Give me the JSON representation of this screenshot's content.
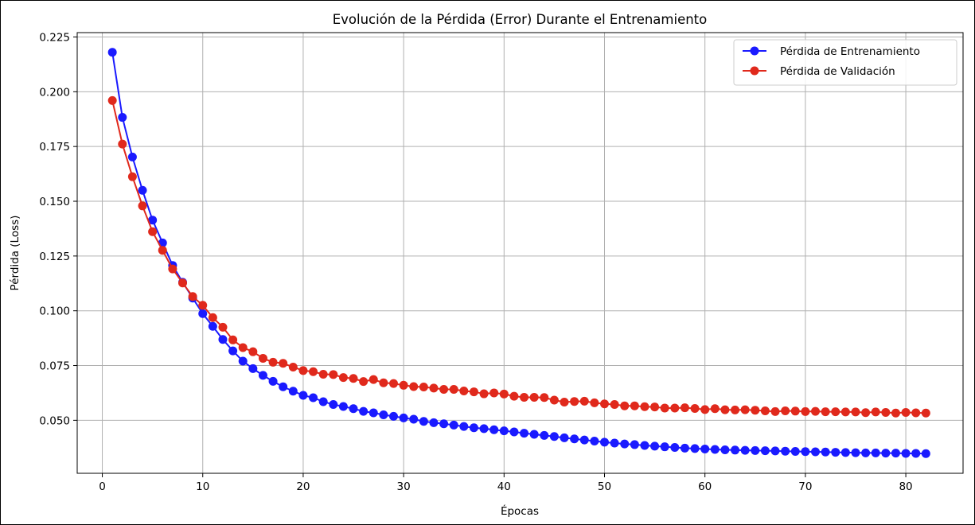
{
  "chart_data": {
    "type": "line",
    "title": "Evolución de la Pérdida (Error) Durante el Entrenamiento",
    "xlabel": "Épocas",
    "ylabel": "Pérdida (Loss)",
    "xlim": [
      -2.5,
      85.7
    ],
    "ylim": [
      0.0258,
      0.227
    ],
    "xticks": [
      0,
      10,
      20,
      30,
      40,
      50,
      60,
      70,
      80
    ],
    "xtick_labels": [
      "0",
      "10",
      "20",
      "30",
      "40",
      "50",
      "60",
      "70",
      "80"
    ],
    "yticks": [
      0.05,
      0.075,
      0.1,
      0.125,
      0.15,
      0.175,
      0.2,
      0.225
    ],
    "ytick_labels": [
      "0.050",
      "0.075",
      "0.100",
      "0.125",
      "0.150",
      "0.175",
      "0.200",
      "0.225"
    ],
    "grid": true,
    "legend_position": "top-right",
    "x": [
      1,
      2,
      3,
      4,
      5,
      6,
      7,
      8,
      9,
      10,
      11,
      12,
      13,
      14,
      15,
      16,
      17,
      18,
      19,
      20,
      21,
      22,
      23,
      24,
      25,
      26,
      27,
      28,
      29,
      30,
      31,
      32,
      33,
      34,
      35,
      36,
      37,
      38,
      39,
      40,
      41,
      42,
      43,
      44,
      45,
      46,
      47,
      48,
      49,
      50,
      51,
      52,
      53,
      54,
      55,
      56,
      57,
      58,
      59,
      60,
      61,
      62,
      63,
      64,
      65,
      66,
      67,
      68,
      69,
      70,
      71,
      72,
      73,
      74,
      75,
      76,
      77,
      78,
      79,
      80,
      81,
      82
    ],
    "series": [
      {
        "name": "Pérdida de Entrenamiento",
        "color": "#1a1aff",
        "values": [
          0.218,
          0.1883,
          0.1702,
          0.155,
          0.1414,
          0.131,
          0.1207,
          0.113,
          0.1058,
          0.0987,
          0.0929,
          0.0869,
          0.0817,
          0.077,
          0.0736,
          0.0705,
          0.0678,
          0.0653,
          0.0633,
          0.0614,
          0.0603,
          0.0585,
          0.0572,
          0.0563,
          0.0553,
          0.0541,
          0.0534,
          0.0525,
          0.0518,
          0.0511,
          0.0505,
          0.0495,
          0.0489,
          0.0484,
          0.0478,
          0.0472,
          0.0466,
          0.0462,
          0.0457,
          0.0452,
          0.0447,
          0.0441,
          0.0436,
          0.0431,
          0.0426,
          0.042,
          0.0415,
          0.041,
          0.0405,
          0.04,
          0.0396,
          0.0392,
          0.0389,
          0.0385,
          0.0382,
          0.0379,
          0.0376,
          0.0373,
          0.0371,
          0.0369,
          0.0367,
          0.0365,
          0.0364,
          0.0363,
          0.0362,
          0.0361,
          0.036,
          0.0359,
          0.0358,
          0.0357,
          0.0356,
          0.0355,
          0.0354,
          0.0353,
          0.0352,
          0.0351,
          0.0351,
          0.035,
          0.035,
          0.0349,
          0.0349,
          0.0348
        ]
      },
      {
        "name": "Pérdida de Validación",
        "color": "#e0291c",
        "values": [
          0.196,
          0.1761,
          0.1612,
          0.1479,
          0.1361,
          0.1276,
          0.1191,
          0.1127,
          0.1065,
          0.1025,
          0.0969,
          0.0925,
          0.0867,
          0.0832,
          0.0813,
          0.0783,
          0.0765,
          0.076,
          0.0743,
          0.0727,
          0.0722,
          0.071,
          0.0709,
          0.0695,
          0.0691,
          0.0677,
          0.0686,
          0.0671,
          0.0668,
          0.066,
          0.0654,
          0.0652,
          0.0647,
          0.0641,
          0.0641,
          0.0634,
          0.063,
          0.0621,
          0.0625,
          0.062,
          0.061,
          0.0605,
          0.0605,
          0.0604,
          0.0592,
          0.0583,
          0.0586,
          0.0587,
          0.058,
          0.0575,
          0.0572,
          0.0566,
          0.0566,
          0.0562,
          0.0561,
          0.0556,
          0.0556,
          0.0557,
          0.0554,
          0.0549,
          0.0553,
          0.0548,
          0.0547,
          0.0548,
          0.0546,
          0.0543,
          0.054,
          0.0543,
          0.0542,
          0.054,
          0.0541,
          0.0539,
          0.0539,
          0.0538,
          0.0538,
          0.0535,
          0.0538,
          0.0536,
          0.0533,
          0.0536,
          0.0534,
          0.0533
        ]
      }
    ]
  }
}
